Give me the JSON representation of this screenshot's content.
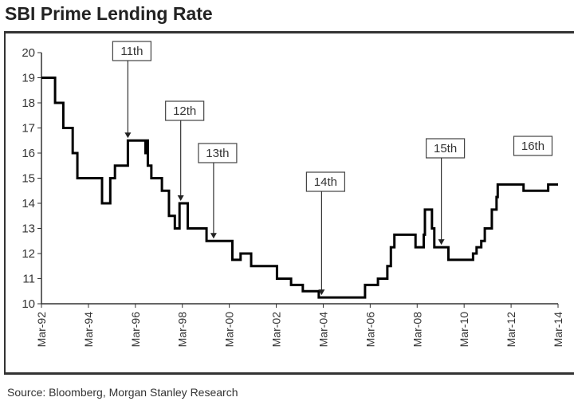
{
  "chart_data": {
    "type": "line",
    "title": "SBI Prime Lending Rate",
    "source": "Source: Bloomberg, Morgan Stanley Research",
    "xlabel": "",
    "ylabel": "",
    "ylim": [
      10,
      20
    ],
    "xlim": [
      1992.17,
      2014.17
    ],
    "yticks": [
      "10",
      "11",
      "12",
      "13",
      "14",
      "15",
      "16",
      "17",
      "18",
      "19",
      "20"
    ],
    "xticks": [
      {
        "label": "Mar-92",
        "x": 1992.17
      },
      {
        "label": "Mar-94",
        "x": 1994.17
      },
      {
        "label": "Mar-96",
        "x": 1996.17
      },
      {
        "label": "Mar-98",
        "x": 1998.17
      },
      {
        "label": "Mar-00",
        "x": 2000.17
      },
      {
        "label": "Mar-02",
        "x": 2002.17
      },
      {
        "label": "Mar-04",
        "x": 2004.17
      },
      {
        "label": "Mar-06",
        "x": 2006.17
      },
      {
        "label": "Mar-08",
        "x": 2008.17
      },
      {
        "label": "Mar-10",
        "x": 2010.17
      },
      {
        "label": "Mar-12",
        "x": 2012.17
      },
      {
        "label": "Mar-14",
        "x": 2014.17
      }
    ],
    "grid": false,
    "line_color": "#000000",
    "step_series": [
      [
        1992.17,
        19
      ],
      [
        1992.75,
        18
      ],
      [
        1993.1,
        17
      ],
      [
        1993.5,
        16
      ],
      [
        1993.7,
        15
      ],
      [
        1994.75,
        14
      ],
      [
        1995.1,
        15
      ],
      [
        1995.3,
        15.5
      ],
      [
        1995.85,
        16.5
      ],
      [
        1996.6,
        16
      ],
      [
        1996.65,
        16.5
      ],
      [
        1996.7,
        15.5
      ],
      [
        1996.85,
        15
      ],
      [
        1997.3,
        14.5
      ],
      [
        1997.6,
        13.5
      ],
      [
        1997.85,
        13
      ],
      [
        1998.05,
        14
      ],
      [
        1998.4,
        13
      ],
      [
        1999.2,
        12.5
      ],
      [
        2000.3,
        11.75
      ],
      [
        2000.65,
        12
      ],
      [
        2001.1,
        11.5
      ],
      [
        2002.2,
        11
      ],
      [
        2002.8,
        10.75
      ],
      [
        2003.3,
        10.5
      ],
      [
        2003.98,
        10.25
      ],
      [
        2005.95,
        10.75
      ],
      [
        2006.5,
        11
      ],
      [
        2006.9,
        11.5
      ],
      [
        2007.05,
        12.25
      ],
      [
        2007.2,
        12.75
      ],
      [
        2008.1,
        12.25
      ],
      [
        2008.45,
        12.75
      ],
      [
        2008.5,
        13.75
      ],
      [
        2008.8,
        13
      ],
      [
        2008.9,
        12.25
      ],
      [
        2009.5,
        11.75
      ],
      [
        2010.55,
        12
      ],
      [
        2010.7,
        12.25
      ],
      [
        2010.9,
        12.5
      ],
      [
        2011.05,
        13
      ],
      [
        2011.35,
        13.75
      ],
      [
        2011.55,
        14.25
      ],
      [
        2011.6,
        14.75
      ],
      [
        2012.7,
        14.5
      ],
      [
        2013.75,
        14.75
      ],
      [
        2014.17,
        14.75
      ]
    ],
    "annotations": [
      {
        "label": "11th",
        "x": 1995.85,
        "y": 16.5,
        "arrow": true
      },
      {
        "label": "12th",
        "x": 1998.1,
        "y": 14,
        "arrow": true
      },
      {
        "label": "13th",
        "x": 1999.5,
        "y": 12.5,
        "arrow": true
      },
      {
        "label": "14th",
        "x": 2004.1,
        "y": 10.25,
        "arrow": true
      },
      {
        "label": "15th",
        "x": 2009.2,
        "y": 12.25,
        "arrow": true
      },
      {
        "label": "16th",
        "x": 2013.1,
        "y": 15.9,
        "arrow": false
      }
    ]
  }
}
